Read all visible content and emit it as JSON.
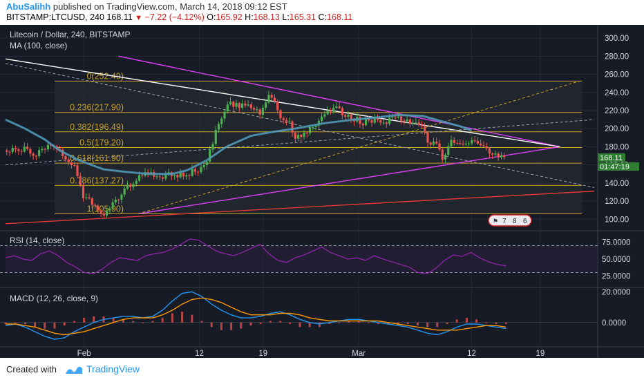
{
  "header": {
    "author": "AbuSalihh",
    "published_text": "published on TradingView.com, March 14, 2018 09:12 EST",
    "symbol": "BITSTAMP:LTCUSD, 240",
    "last": "168.11",
    "change_arrow": "▼",
    "change": "−7.22 (−4.12%)",
    "o_label": "O:",
    "o_value": "165.92",
    "h_label": "H:",
    "h_value": "168.13",
    "l_label": "L:",
    "l_value": "165.31",
    "c_label": "C:",
    "c_value": "168.11"
  },
  "colors": {
    "background": "#161b26",
    "up_candle": "#4caf50",
    "down_candle": "#ef5350",
    "ma": "#4f97b5",
    "fib": "#c9a227",
    "trend": "#e040fb",
    "white_line": "#ffffff",
    "red_line": "#e53935",
    "rsi": "#8e24aa",
    "macd": "#2196f3",
    "signal": "#ff9800",
    "price_tag": "#2e7d32",
    "brand": "#2196f3"
  },
  "chart_data": {
    "type": "candlestick",
    "title": "Litecoin / Dollar, 240, BITSTAMP",
    "indicator": "MA (100, close)",
    "price_axis": [
      "300.00",
      "280.00",
      "260.00",
      "240.00",
      "220.00",
      "200.00",
      "180.00",
      "160.00",
      "140.00",
      "120.00",
      "100.00"
    ],
    "price_range": [
      85,
      310
    ],
    "last_price_tag": "168.11",
    "countdown_tag": "01:47:19",
    "x_ticks": [
      "Feb",
      "12",
      "19",
      "Mar",
      "12",
      "19"
    ],
    "fibonacci": [
      {
        "label": "0(252.49)",
        "price": 252.49
      },
      {
        "label": "0.236(217.90)",
        "price": 217.9
      },
      {
        "label": "0.382(196.49)",
        "price": 196.49
      },
      {
        "label": "0.5(179.20)",
        "price": 179.2
      },
      {
        "label": "0.618(161.90)",
        "price": 161.9
      },
      {
        "label": "0.786(137.27)",
        "price": 137.27
      },
      {
        "label": "1(105.90)",
        "price": 105.9
      }
    ],
    "price_path": [
      [
        0,
        176
      ],
      [
        4,
        178
      ],
      [
        8,
        176
      ],
      [
        12,
        172
      ],
      [
        16,
        180
      ],
      [
        20,
        184
      ],
      [
        24,
        168
      ],
      [
        28,
        158
      ],
      [
        32,
        122
      ],
      [
        36,
        118
      ],
      [
        40,
        105
      ],
      [
        44,
        118
      ],
      [
        48,
        132
      ],
      [
        52,
        140
      ],
      [
        56,
        150
      ],
      [
        60,
        148
      ],
      [
        64,
        146
      ],
      [
        68,
        152
      ],
      [
        72,
        148
      ],
      [
        76,
        152
      ],
      [
        80,
        156
      ],
      [
        84,
        178
      ],
      [
        86,
        200
      ],
      [
        90,
        225
      ],
      [
        94,
        228
      ],
      [
        98,
        224
      ],
      [
        102,
        222
      ],
      [
        104,
        218
      ],
      [
        108,
        238
      ],
      [
        112,
        215
      ],
      [
        116,
        205
      ],
      [
        118,
        192
      ],
      [
        122,
        196
      ],
      [
        126,
        204
      ],
      [
        130,
        214
      ],
      [
        134,
        222
      ],
      [
        138,
        216
      ],
      [
        142,
        212
      ],
      [
        146,
        206
      ],
      [
        150,
        210
      ],
      [
        154,
        206
      ],
      [
        158,
        212
      ],
      [
        162,
        210
      ],
      [
        166,
        206
      ],
      [
        170,
        200
      ],
      [
        172,
        188
      ],
      [
        176,
        180
      ],
      [
        178,
        168
      ],
      [
        182,
        185
      ],
      [
        186,
        180
      ],
      [
        190,
        186
      ],
      [
        194,
        178
      ],
      [
        198,
        176
      ],
      [
        201,
        170
      ],
      [
        204,
        168
      ]
    ],
    "ma_path": [
      [
        0,
        210
      ],
      [
        8,
        200
      ],
      [
        16,
        188
      ],
      [
        22,
        176
      ],
      [
        30,
        165
      ],
      [
        40,
        155
      ],
      [
        50,
        152
      ],
      [
        58,
        150
      ],
      [
        68,
        150
      ],
      [
        74,
        154
      ],
      [
        82,
        165
      ],
      [
        90,
        180
      ],
      [
        100,
        192
      ],
      [
        108,
        196
      ],
      [
        118,
        200
      ],
      [
        130,
        206
      ],
      [
        142,
        210
      ],
      [
        150,
        212
      ],
      [
        160,
        215
      ],
      [
        170,
        214
      ],
      [
        178,
        208
      ],
      [
        186,
        202
      ],
      [
        190,
        198
      ]
    ],
    "ma_endpoint_label": "",
    "rsi": {
      "label": "RSI (14, close)",
      "axis": [
        "75.0000",
        "50.0000",
        "25.0000"
      ],
      "bands": [
        70,
        30
      ],
      "values": [
        52,
        55,
        50,
        48,
        58,
        62,
        55,
        45,
        38,
        30,
        28,
        35,
        45,
        52,
        50,
        48,
        55,
        58,
        60,
        65,
        72,
        80,
        78,
        70,
        62,
        58,
        55,
        60,
        66,
        72,
        58,
        48,
        45,
        52,
        56,
        62,
        68,
        60,
        55,
        50,
        52,
        48,
        55,
        50,
        46,
        42,
        38,
        30,
        28,
        36,
        48,
        56,
        54,
        60,
        52,
        46,
        42,
        40
      ]
    },
    "macd": {
      "label": "MACD (12, 26, close, 9)",
      "axis": [
        "20.0000",
        "0.0000"
      ],
      "range": [
        -15,
        22
      ],
      "macd": [
        -2,
        -1,
        -3,
        -6,
        -9,
        -11,
        -10,
        -6,
        -3,
        0,
        2,
        3,
        4,
        4,
        3,
        4,
        8,
        14,
        19,
        20,
        17,
        12,
        8,
        5,
        3,
        3,
        4,
        6,
        7,
        5,
        2,
        0,
        -1,
        0,
        1,
        2,
        2,
        1,
        0,
        -1,
        -2,
        -3,
        -5,
        -7,
        -8,
        -6,
        -3,
        -1,
        -1,
        -2,
        -3,
        -4
      ],
      "signal": [
        -1,
        -1,
        -2,
        -3,
        -5,
        -7,
        -8,
        -7,
        -6,
        -4,
        -2,
        0,
        2,
        3,
        3,
        3,
        5,
        8,
        12,
        15,
        16,
        15,
        13,
        10,
        7,
        5,
        5,
        5,
        6,
        6,
        5,
        3,
        2,
        1,
        1,
        1,
        1,
        1,
        1,
        0,
        -1,
        -2,
        -3,
        -4,
        -5,
        -5,
        -5,
        -4,
        -3,
        -2,
        -2,
        -3
      ]
    },
    "badge": [
      "7",
      "8",
      "6"
    ]
  }
}
